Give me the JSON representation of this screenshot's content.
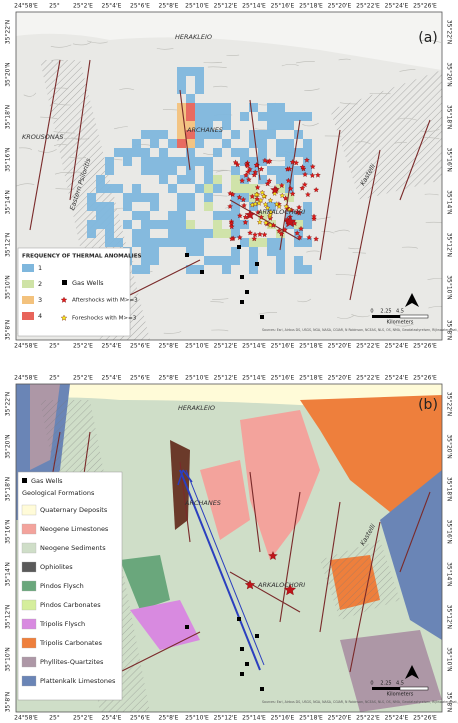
{
  "lon_labels": [
    "24°58'E",
    "25°",
    "25°2'E",
    "25°4'E",
    "25°6'E",
    "25°8'E",
    "25°10'E",
    "25°12'E",
    "25°14'E",
    "25°16'E",
    "25°18'E",
    "25°20'E",
    "25°22'E",
    "25°24'E",
    "25°26'E"
  ],
  "lat_labels": [
    "35°22'N",
    "35°20'N",
    "35°18'N",
    "35°16'N",
    "35°14'N",
    "35°12'N",
    "35°10'N",
    "35°8'N"
  ],
  "panel_a": {
    "label": "(a)",
    "places": {
      "herakleio": "HERAKLEIO",
      "archanes": "ARCHANES",
      "arkalochori": "ARKALOCHORI",
      "krousonas": "KROUSONAS",
      "psiloritis": "Eastern Psiloritis",
      "kastelli": "Kastelli"
    },
    "legend": {
      "title": "FREQUENCY OF THERMAL ANOMALIES",
      "classes": [
        {
          "label": "1",
          "color": "#7fb7dd"
        },
        {
          "label": "2",
          "color": "#cfe3a6"
        },
        {
          "label": "3",
          "color": "#f3c27d"
        },
        {
          "label": "4",
          "color": "#e8645a"
        }
      ],
      "gas_wells": "Gas Wells",
      "aftershocks": "Aftershocks with M>=3",
      "foreshocks": "Foreshocks with M>=3"
    },
    "scale": [
      "0",
      "2.25",
      "4.5",
      "Kilometers"
    ],
    "attribution": "Sources: Esri, Airbus DS, USGS, NGA, NASA, CGIAR, N Robinson, NCEAS, NLS, OS, NMA, Geodatastyrelsen, Rijkswaterstaat, GSA, Geoland, FEMA, Intermap"
  },
  "panel_b": {
    "label": "(b)",
    "places": {
      "herakleio": "HERAKLEIO",
      "archanes": "ARCHANES",
      "arkalochori": "ARKALOCHORI",
      "kastelli": "Kastelli"
    },
    "legend": {
      "gas_wells": "Gas Wells",
      "title": "Geological Formations",
      "formations": [
        {
          "label": "Quaternary Deposits",
          "color": "#fffbd8"
        },
        {
          "label": "Neogene Limestones",
          "color": "#f3a39c"
        },
        {
          "label": "Neogene Sediments",
          "color": "#cfdec8"
        },
        {
          "label": "Ophiolites",
          "color": "#5a5a5a"
        },
        {
          "label": "Pindos Flysch",
          "color": "#6aa77c"
        },
        {
          "label": "Pindos Carbonates",
          "color": "#d5ee9c"
        },
        {
          "label": "Tripolis Flysch",
          "color": "#d88ae0"
        },
        {
          "label": "Tripolis Carbonates",
          "color": "#ee7f3c"
        },
        {
          "label": "Phyllites-Quartzites",
          "color": "#ad97a6"
        },
        {
          "label": "Plattenkalk Limestones",
          "color": "#6a85b6"
        }
      ]
    },
    "scale": [
      "0",
      "2.25",
      "4.5",
      "Kilometers"
    ],
    "attribution": "Sources: Esri, Airbus DS, USGS, NGA, NASA, CGIAR, N Robinson, NCEAS, NLS, OS, NMA, Geodatastyrelsen, Rijkswaterstaat, GSA, Geoland, FEMA, Intermap"
  }
}
